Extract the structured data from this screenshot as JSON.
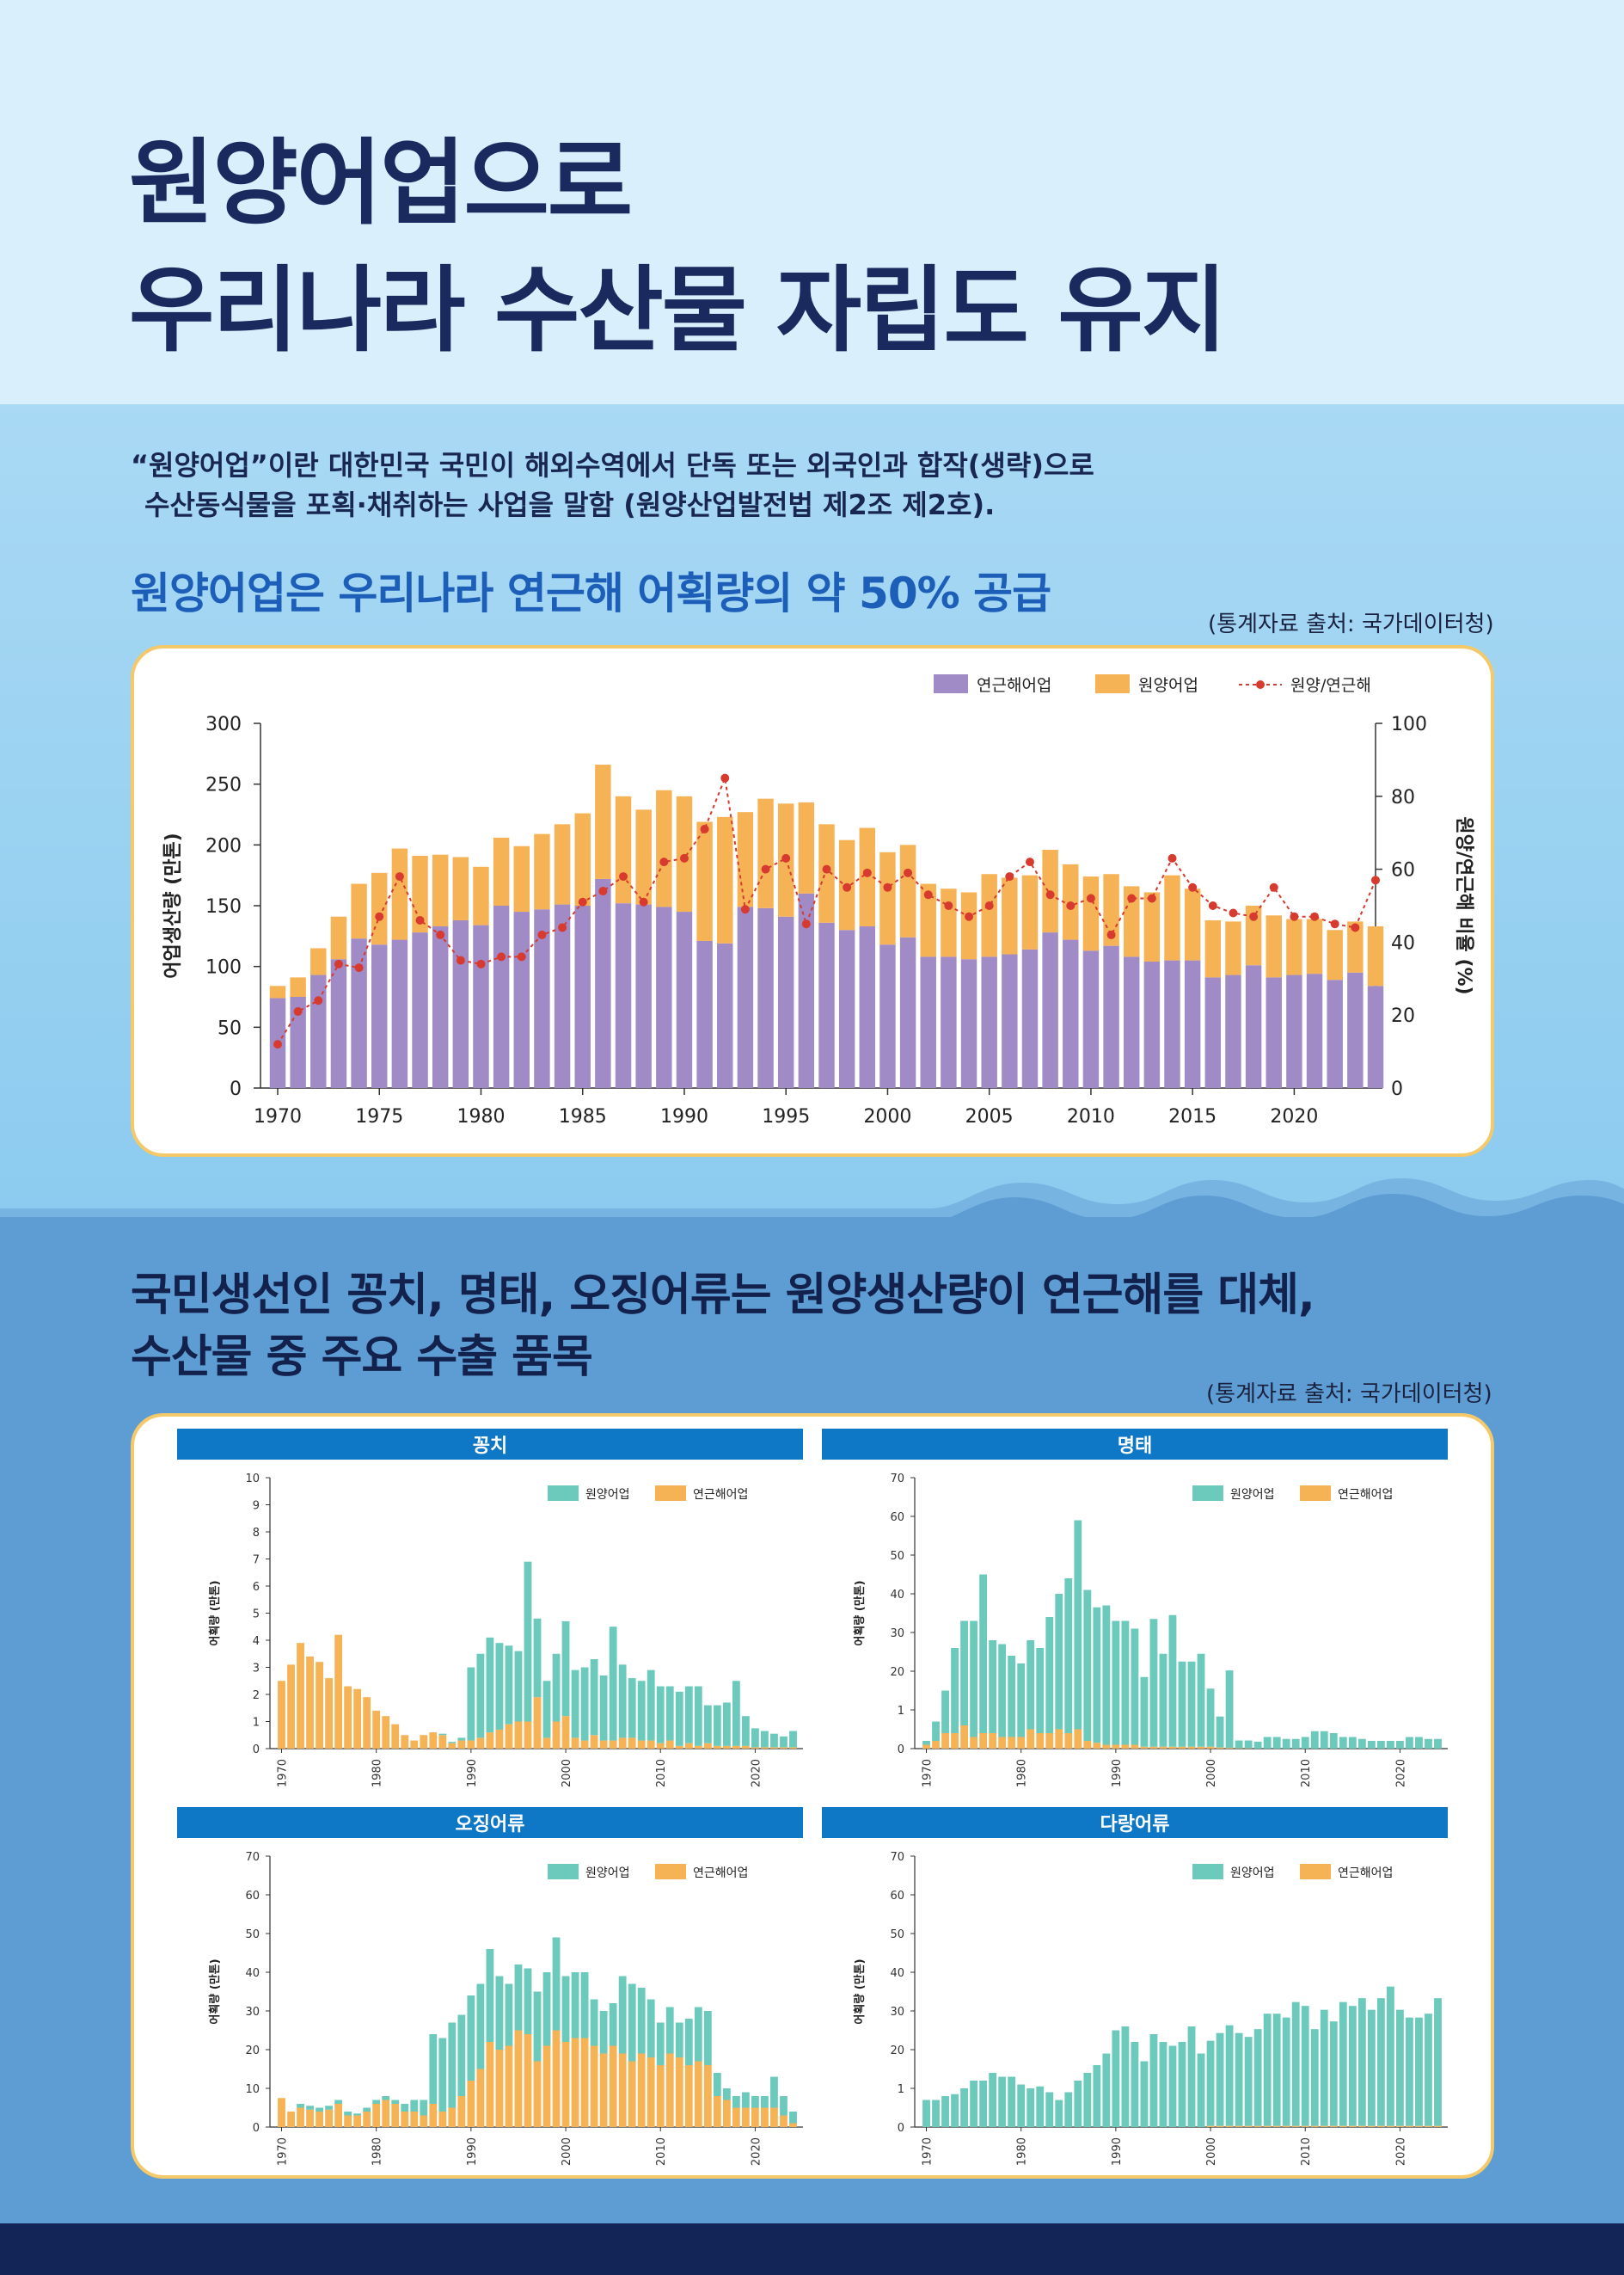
{
  "title": {
    "line1": "원양어업으로",
    "line2": "우리나라 수산물 자립도 유지"
  },
  "definition": {
    "line1": "“원양어업”이란 대한민국 국민이 해외수역에서 단독 또는 외국인과 합작(생략)으로",
    "line2": "수산동식물을 포획·채취하는 사업을 말함 (원양산업발전법 제2조 제2호)."
  },
  "section1": {
    "heading": "원양어업은 우리나라 연근해 어획량의 약 50% 공급",
    "source": "(통계자료 출처: 국가데이터청)"
  },
  "section2": {
    "heading_line1": "국민생선인 꽁치, 명태, 오징어류는 원양생산량이 연근해를 대체,",
    "heading_line2": "수산물 중 주요 수출 품목",
    "source": "(통계자료 출처: 국가데이터청)"
  },
  "colors": {
    "purple": "#a08bc7",
    "orange": "#f6b356",
    "teal": "#6ccabd",
    "red": "#d73a2e",
    "panel_header": "#0f78c6",
    "navy": "#1a2a5e"
  },
  "chart_data": [
    {
      "type": "bar",
      "stacked": true,
      "ylabel": "어업생산량 (만톤)",
      "y2label": "원양/연근해 비율 (%)",
      "ylim": [
        0,
        300
      ],
      "y2lim": [
        0,
        100
      ],
      "yticks": [
        "0",
        "50",
        "100",
        "150",
        "200",
        "250",
        "300"
      ],
      "y2ticks": [
        "0",
        "20",
        "40",
        "60",
        "80",
        "100"
      ],
      "xticks": [
        "1970",
        "1975",
        "1980",
        "1985",
        "1990",
        "1995",
        "2000",
        "2005",
        "2010",
        "2015",
        "2020"
      ],
      "x": [
        1970,
        1971,
        1972,
        1973,
        1974,
        1975,
        1976,
        1977,
        1978,
        1979,
        1980,
        1981,
        1982,
        1983,
        1984,
        1985,
        1986,
        1987,
        1988,
        1989,
        1990,
        1991,
        1992,
        1993,
        1994,
        1995,
        1996,
        1997,
        1998,
        1999,
        2000,
        2001,
        2002,
        2003,
        2004,
        2005,
        2006,
        2007,
        2008,
        2009,
        2010,
        2011,
        2012,
        2013,
        2014,
        2015,
        2016,
        2017,
        2018,
        2019,
        2020,
        2021,
        2022,
        2023,
        2024
      ],
      "series": [
        {
          "name": "연근해어업",
          "values": [
            74,
            75,
            93,
            106,
            123,
            118,
            122,
            128,
            133,
            138,
            134,
            150,
            145,
            147,
            151,
            150,
            172,
            152,
            151,
            149,
            145,
            121,
            119,
            149,
            148,
            141,
            160,
            136,
            130,
            133,
            118,
            124,
            108,
            108,
            106,
            108,
            110,
            114,
            128,
            122,
            113,
            117,
            108,
            104,
            105,
            105,
            91,
            93,
            101,
            91,
            93,
            94,
            89,
            95,
            84
          ]
        },
        {
          "name": "원양어업",
          "values": [
            10,
            16,
            22,
            35,
            45,
            59,
            75,
            63,
            59,
            52,
            48,
            56,
            54,
            62,
            66,
            76,
            94,
            88,
            78,
            96,
            95,
            98,
            104,
            78,
            90,
            93,
            75,
            81,
            74,
            81,
            76,
            76,
            60,
            56,
            55,
            68,
            63,
            61,
            68,
            62,
            61,
            59,
            58,
            57,
            70,
            59,
            47,
            44,
            49,
            51,
            46,
            45,
            41,
            42,
            49
          ]
        },
        {
          "name": "원양/연근해",
          "axis": "y2",
          "values": [
            12,
            21,
            24,
            34,
            33,
            47,
            58,
            46,
            42,
            35,
            34,
            36,
            36,
            42,
            44,
            51,
            54,
            58,
            51,
            62,
            63,
            71,
            85,
            49,
            60,
            63,
            45,
            60,
            55,
            59,
            55,
            59,
            53,
            50,
            47,
            50,
            58,
            62,
            53,
            50,
            52,
            42,
            52,
            52,
            63,
            55,
            50,
            48,
            47,
            55,
            47,
            47,
            45,
            44,
            57
          ]
        }
      ]
    },
    {
      "type": "bar",
      "stacked": true,
      "title": "꽁치",
      "ylabel": "어획량 (만톤)",
      "ylim": [
        0,
        10
      ],
      "yticks": [
        "0",
        "1",
        "2",
        "3",
        "4",
        "5",
        "6",
        "7",
        "8",
        "9",
        "10"
      ],
      "xticks": [
        "1970",
        "1980",
        "1990",
        "2000",
        "2010",
        "2020"
      ],
      "x": [
        1970,
        1971,
        1972,
        1973,
        1974,
        1975,
        1976,
        1977,
        1978,
        1979,
        1980,
        1981,
        1982,
        1983,
        1984,
        1985,
        1986,
        1987,
        1988,
        1989,
        1990,
        1991,
        1992,
        1993,
        1994,
        1995,
        1996,
        1997,
        1998,
        1999,
        2000,
        2001,
        2002,
        2003,
        2004,
        2005,
        2006,
        2007,
        2008,
        2009,
        2010,
        2011,
        2012,
        2013,
        2014,
        2015,
        2016,
        2017,
        2018,
        2019,
        2020,
        2021,
        2022,
        2023,
        2024
      ],
      "series": [
        {
          "name": "원양어업",
          "values": [
            0,
            0,
            0,
            0,
            0,
            0,
            0,
            0,
            0,
            0,
            0,
            0,
            0,
            0,
            0,
            0,
            0,
            0.05,
            0.05,
            0.1,
            2.7,
            3.1,
            3.5,
            3.2,
            2.9,
            2.6,
            5.9,
            2.9,
            2.1,
            2.5,
            3.5,
            2.5,
            2.7,
            2.8,
            2.4,
            4.2,
            2.7,
            2.2,
            2.2,
            2.6,
            2.1,
            2.0,
            2.0,
            2.1,
            2.2,
            1.4,
            1.5,
            1.6,
            2.4,
            1.1,
            0.7,
            0.6,
            0.5,
            0.4,
            0.6
          ]
        },
        {
          "name": "연근해어업",
          "values": [
            2.5,
            3.1,
            3.9,
            3.4,
            3.2,
            2.6,
            4.2,
            2.3,
            2.2,
            1.9,
            1.4,
            1.2,
            0.9,
            0.5,
            0.3,
            0.5,
            0.6,
            0.5,
            0.2,
            0.3,
            0.3,
            0.4,
            0.6,
            0.7,
            0.9,
            1.0,
            1.0,
            1.9,
            0.4,
            1.0,
            1.2,
            0.4,
            0.3,
            0.5,
            0.3,
            0.3,
            0.4,
            0.4,
            0.3,
            0.3,
            0.2,
            0.3,
            0.1,
            0.2,
            0.1,
            0.2,
            0.1,
            0.1,
            0.1,
            0.1,
            0.05,
            0.05,
            0.05,
            0.05,
            0.05
          ]
        }
      ]
    },
    {
      "type": "bar",
      "stacked": true,
      "title": "명태",
      "ylabel": "어획량 (만톤)",
      "ylim": [
        0,
        70
      ],
      "yticks": [
        "0",
        "1",
        "20",
        "30",
        "40",
        "50",
        "60",
        "70"
      ],
      "xticks": [
        "1970",
        "1980",
        "1990",
        "2000",
        "2010",
        "2020"
      ],
      "x": [
        1970,
        1971,
        1972,
        1973,
        1974,
        1975,
        1976,
        1977,
        1978,
        1979,
        1980,
        1981,
        1982,
        1983,
        1984,
        1985,
        1986,
        1987,
        1988,
        1989,
        1990,
        1991,
        1992,
        1993,
        1994,
        1995,
        1996,
        1997,
        1998,
        1999,
        2000,
        2001,
        2002,
        2003,
        2004,
        2005,
        2006,
        2007,
        2008,
        2009,
        2010,
        2011,
        2012,
        2013,
        2014,
        2015,
        2016,
        2017,
        2018,
        2019,
        2020,
        2021,
        2022,
        2023,
        2024
      ],
      "series": [
        {
          "name": "원양어업",
          "values": [
            1,
            5,
            11,
            22,
            27,
            30,
            41,
            24,
            24,
            21,
            19,
            23,
            22,
            30,
            35,
            40,
            54,
            39,
            35,
            36,
            32,
            32,
            30,
            18,
            33,
            24,
            34,
            22,
            22,
            24,
            15,
            8,
            20,
            2,
            2,
            1.8,
            3,
            3,
            2.5,
            2.5,
            3,
            4.5,
            4.5,
            4,
            3,
            3,
            2.5,
            2,
            2,
            2,
            2,
            3,
            3,
            2.5,
            2.5
          ]
        },
        {
          "name": "연근해어업",
          "values": [
            1,
            2,
            4,
            4,
            6,
            3,
            4,
            4,
            3,
            3,
            3,
            5,
            4,
            4,
            5,
            4,
            5,
            2,
            1.5,
            1,
            1,
            1,
            1,
            0.5,
            0.5,
            0.5,
            0.5,
            0.5,
            0.5,
            0.5,
            0.5,
            0.3,
            0.2,
            0.1,
            0.1,
            0,
            0,
            0,
            0,
            0,
            0,
            0,
            0,
            0,
            0,
            0,
            0,
            0,
            0,
            0,
            0,
            0,
            0,
            0,
            0
          ]
        }
      ]
    },
    {
      "type": "bar",
      "stacked": true,
      "title": "오징어류",
      "ylabel": "어획량 (만톤)",
      "ylim": [
        0,
        70
      ],
      "yticks": [
        "0",
        "10",
        "20",
        "30",
        "40",
        "50",
        "60",
        "70"
      ],
      "xticks": [
        "1970",
        "1980",
        "1990",
        "2000",
        "2010",
        "2020"
      ],
      "x": [
        1970,
        1971,
        1972,
        1973,
        1974,
        1975,
        1976,
        1977,
        1978,
        1979,
        1980,
        1981,
        1982,
        1983,
        1984,
        1985,
        1986,
        1987,
        1988,
        1989,
        1990,
        1991,
        1992,
        1993,
        1994,
        1995,
        1996,
        1997,
        1998,
        1999,
        2000,
        2001,
        2002,
        2003,
        2004,
        2005,
        2006,
        2007,
        2008,
        2009,
        2010,
        2011,
        2012,
        2013,
        2014,
        2015,
        2016,
        2017,
        2018,
        2019,
        2020,
        2021,
        2022,
        2023,
        2024
      ],
      "series": [
        {
          "name": "원양어업",
          "values": [
            0,
            0,
            1,
            1,
            1,
            1,
            1,
            1,
            0.5,
            1,
            1,
            1,
            1,
            2,
            3,
            4,
            18,
            19,
            22,
            21,
            22,
            22,
            24,
            19,
            16,
            17,
            17,
            18,
            19,
            24,
            17,
            17,
            17,
            12,
            11,
            11,
            20,
            20,
            17,
            15,
            11,
            12,
            9,
            12,
            14,
            14,
            6,
            3,
            3,
            4,
            3,
            3,
            8,
            5,
            3
          ]
        },
        {
          "name": "연근해어업",
          "values": [
            7.5,
            4,
            5,
            4.5,
            4,
            4.5,
            6,
            3,
            3,
            4,
            6,
            7,
            6,
            4,
            4,
            3,
            6,
            4,
            5,
            8,
            12,
            15,
            22,
            20,
            21,
            25,
            24,
            17,
            21,
            25,
            22,
            23,
            23,
            21,
            19,
            21,
            19,
            17,
            19,
            18,
            16,
            19,
            18,
            16,
            17,
            16,
            8,
            7,
            5,
            5,
            5,
            5,
            5,
            3,
            1
          ]
        }
      ]
    },
    {
      "type": "bar",
      "stacked": true,
      "title": "다랑어류",
      "ylabel": "어획량 (만톤)",
      "ylim": [
        0,
        70
      ],
      "yticks": [
        "0",
        "1",
        "20",
        "30",
        "40",
        "50",
        "60",
        "70"
      ],
      "xticks": [
        "1970",
        "1980",
        "1990",
        "2000",
        "2010",
        "2020"
      ],
      "x": [
        1970,
        1971,
        1972,
        1973,
        1974,
        1975,
        1976,
        1977,
        1978,
        1979,
        1980,
        1981,
        1982,
        1983,
        1984,
        1985,
        1986,
        1987,
        1988,
        1989,
        1990,
        1991,
        1992,
        1993,
        1994,
        1995,
        1996,
        1997,
        1998,
        1999,
        2000,
        2001,
        2002,
        2003,
        2004,
        2005,
        2006,
        2007,
        2008,
        2009,
        2010,
        2011,
        2012,
        2013,
        2014,
        2015,
        2016,
        2017,
        2018,
        2019,
        2020,
        2021,
        2022,
        2023,
        2024
      ],
      "series": [
        {
          "name": "원양어업",
          "values": [
            7,
            7,
            8,
            8.5,
            10,
            12,
            12,
            14,
            13,
            13,
            11,
            10,
            10.5,
            9,
            7,
            9,
            12,
            14,
            16,
            19,
            25,
            26,
            22,
            17,
            24,
            22,
            21,
            22,
            26,
            19,
            22,
            24,
            26,
            24,
            23,
            25,
            29,
            29,
            28,
            32,
            31,
            25,
            30,
            27,
            32,
            31,
            33,
            30,
            33,
            36,
            30,
            28,
            28,
            29,
            33
          ]
        },
        {
          "name": "연근해어업",
          "values": [
            0,
            0,
            0,
            0,
            0,
            0,
            0,
            0,
            0,
            0,
            0,
            0,
            0,
            0,
            0,
            0,
            0,
            0,
            0,
            0,
            0,
            0,
            0,
            0,
            0,
            0,
            0,
            0,
            0,
            0,
            0.3,
            0.3,
            0.3,
            0.3,
            0.3,
            0.3,
            0.3,
            0.3,
            0.3,
            0.3,
            0.3,
            0.3,
            0.3,
            0.3,
            0.3,
            0.3,
            0.3,
            0.3,
            0.3,
            0.3,
            0.3,
            0.3,
            0.3,
            0.3,
            0.3
          ]
        }
      ]
    }
  ]
}
